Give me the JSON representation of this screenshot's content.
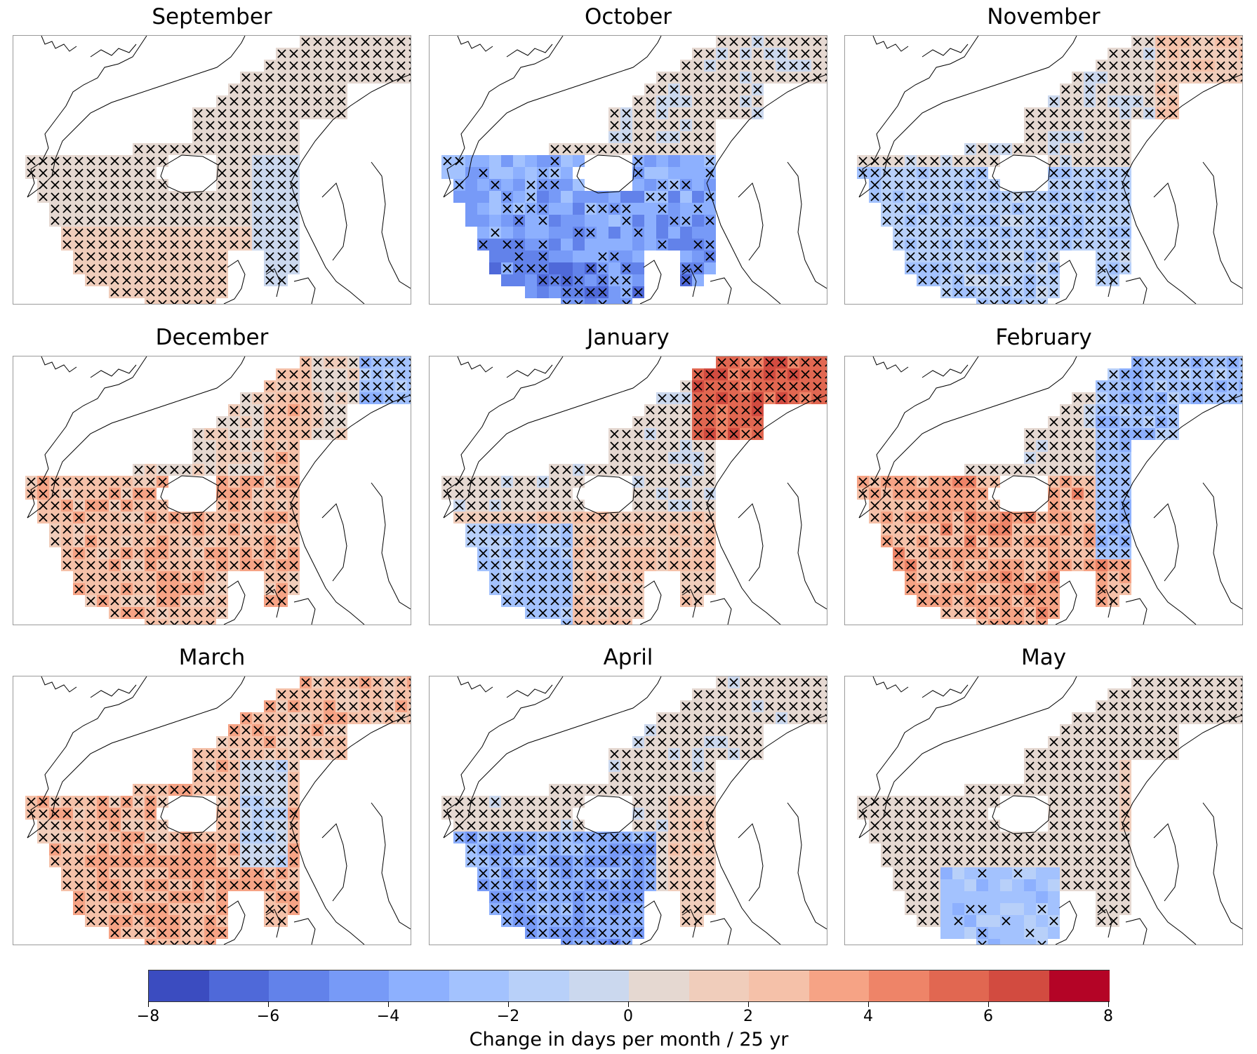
{
  "panels": [
    {
      "title": "September",
      "pattern": "near-zero-positive",
      "strength": 1.0
    },
    {
      "title": "October",
      "pattern": "negative-south",
      "strength": 1.0
    },
    {
      "title": "November",
      "pattern": "mixed-neg-south-pos-northeast",
      "strength": 1.0
    },
    {
      "title": "December",
      "pattern": "positive-south",
      "strength": 1.0
    },
    {
      "title": "January",
      "pattern": "positive-northeast-negative-southwest",
      "strength": 1.0
    },
    {
      "title": "February",
      "pattern": "positive-southwest-negative-northeast",
      "strength": 1.0
    },
    {
      "title": "March",
      "pattern": "positive-widespread",
      "strength": 1.0
    },
    {
      "title": "April",
      "pattern": "negative-southwest",
      "strength": 1.0
    },
    {
      "title": "May",
      "pattern": "negative-patch-south",
      "strength": 1.0
    }
  ],
  "colorbar": {
    "label": "Change in days per month / 25 yr",
    "vmin": -8,
    "vmax": 8,
    "ticks": [
      {
        "value": -8,
        "label": "−8"
      },
      {
        "value": -6,
        "label": "−6"
      },
      {
        "value": -4,
        "label": "−4"
      },
      {
        "value": -2,
        "label": "−2"
      },
      {
        "value": 0,
        "label": "0"
      },
      {
        "value": 2,
        "label": "2"
      },
      {
        "value": 4,
        "label": "4"
      },
      {
        "value": 6,
        "label": "6"
      },
      {
        "value": 8,
        "label": "8"
      }
    ],
    "colors": [
      "#3b4cc0",
      "#4f69d9",
      "#6282ea",
      "#779af7",
      "#8db0fe",
      "#a3c2fe",
      "#b8d0f9",
      "#cbd8ee",
      "#e5d8d1",
      "#f0cdbb",
      "#f5c1a9",
      "#f6a385",
      "#ee8468",
      "#e16751",
      "#d24b40",
      "#b40426"
    ]
  },
  "legend": {
    "hatch_symbol": "×",
    "colormap": "coolwarm"
  }
}
